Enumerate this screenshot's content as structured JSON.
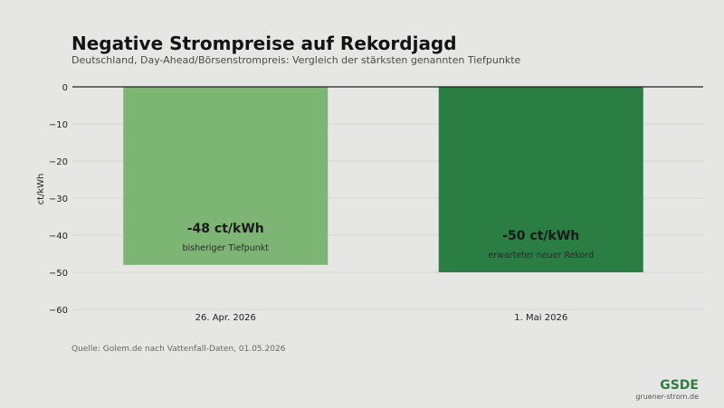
{
  "header": {
    "title": "Negative Strompreise auf Rekordjagd",
    "subtitle": "Deutschland, Day-Ahead/Börsenstrompreis: Vergleich der stärksten genannten Tiefpunkte"
  },
  "chart_data": {
    "type": "bar",
    "categories": [
      "26. Apr. 2026",
      "1. Mai 2026"
    ],
    "values": [
      -48,
      -50
    ],
    "value_labels": [
      "-48 ct/kWh",
      "-50 ct/kWh"
    ],
    "annotations": [
      "bisheriger Tiefpunkt",
      "erwarteter neuer Rekord"
    ],
    "colors": [
      "#7db575",
      "#2a7d43"
    ],
    "ylabel": "ct/kWh",
    "ylim": [
      -60,
      0
    ],
    "yticks": [
      0,
      -10,
      -20,
      -30,
      -40,
      -50,
      -60
    ],
    "ytick_labels": [
      "0",
      "−10",
      "−20",
      "−30",
      "−40",
      "−50",
      "−60"
    ],
    "grid": true
  },
  "footer": {
    "source": "Quelle: Golem.de nach Vattenfall-Daten, 01.05.2026",
    "brand": "GSDE",
    "brand_url": "gruener-strom.de"
  }
}
